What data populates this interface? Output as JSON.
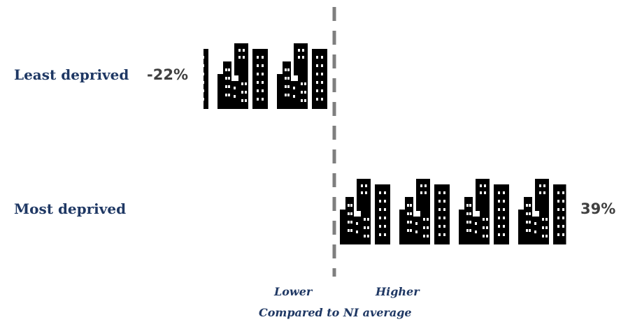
{
  "chart_data": {
    "type": "bar",
    "style": "pictograph",
    "icon": "city-buildings-icon",
    "categories": [
      "Least deprived",
      "Most deprived"
    ],
    "values": [
      -22,
      39
    ],
    "value_labels": [
      "-22%",
      "39%"
    ],
    "unit": "%",
    "xlim": [
      -30,
      60
    ],
    "reference_line": 0,
    "axis_left_label": "Lower",
    "axis_right_label": "Higher",
    "xlabel": "Compared to NI average",
    "colors": {
      "icon": "#000000",
      "category_text": "#1f3864",
      "value_text": "#404040",
      "reference_line": "#7f7f7f"
    }
  }
}
